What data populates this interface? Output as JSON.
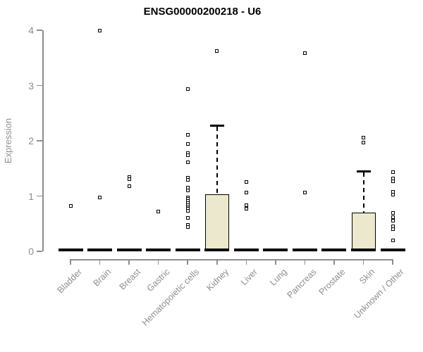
{
  "chart_data": {
    "type": "box",
    "title": "ENSG00000200218 - U6",
    "xlabel": "",
    "ylabel": "Expression",
    "ylim": [
      0,
      4
    ],
    "y_ticks": [
      "0",
      "1",
      "2",
      "3",
      "4"
    ],
    "grid": false,
    "legend": "none",
    "categories": [
      "Bladder",
      "Brain",
      "Breast",
      "Gastric",
      "Hematopoietic cells",
      "Kidney",
      "Liver",
      "Lung",
      "Pancreas",
      "Prostate",
      "Skin",
      "Unknown / Other"
    ],
    "boxes": [
      {
        "category": "Bladder",
        "median": 0,
        "q1": 0,
        "q3": 0,
        "whisker_low": 0,
        "whisker_high": 0,
        "outliers": [
          0.82
        ]
      },
      {
        "category": "Brain",
        "median": 0,
        "q1": 0,
        "q3": 0,
        "whisker_low": 0,
        "whisker_high": 0,
        "outliers": [
          4.0,
          0.97
        ]
      },
      {
        "category": "Breast",
        "median": 0,
        "q1": 0,
        "q3": 0,
        "whisker_low": 0,
        "whisker_high": 0,
        "outliers": [
          1.35,
          1.3,
          1.18
        ]
      },
      {
        "category": "Gastric",
        "median": 0,
        "q1": 0,
        "q3": 0,
        "whisker_low": 0,
        "whisker_high": 0,
        "outliers": [
          0.72
        ]
      },
      {
        "category": "Hematopoietic cells",
        "median": 0,
        "q1": 0,
        "q3": 0,
        "whisker_low": 0,
        "whisker_high": 0,
        "outliers": [
          2.93,
          2.11,
          1.94,
          1.78,
          1.74,
          1.61,
          1.33,
          1.29,
          1.15,
          1.1,
          0.98,
          0.95,
          0.91,
          0.87,
          0.84,
          0.8,
          0.77,
          0.73,
          0.6,
          0.48,
          0.44
        ]
      },
      {
        "category": "Kidney",
        "median": 0,
        "q1": 0,
        "q3": 1.03,
        "whisker_low": 0,
        "whisker_high": 2.28,
        "outliers": [
          3.63
        ]
      },
      {
        "category": "Liver",
        "median": 0,
        "q1": 0,
        "q3": 0,
        "whisker_low": 0,
        "whisker_high": 0,
        "outliers": [
          1.25,
          1.06,
          0.83,
          0.77
        ]
      },
      {
        "category": "Lung",
        "median": 0,
        "q1": 0,
        "q3": 0,
        "whisker_low": 0,
        "whisker_high": 0,
        "outliers": []
      },
      {
        "category": "Pancreas",
        "median": 0,
        "q1": 0,
        "q3": 0,
        "whisker_low": 0,
        "whisker_high": 0,
        "outliers": [
          3.58,
          1.07
        ]
      },
      {
        "category": "Prostate",
        "median": 0,
        "q1": 0,
        "q3": 0,
        "whisker_low": 0,
        "whisker_high": 0,
        "outliers": []
      },
      {
        "category": "Skin",
        "median": 0,
        "q1": 0,
        "q3": 0.7,
        "whisker_low": 0,
        "whisker_high": 1.45,
        "outliers": [
          2.06,
          1.97
        ]
      },
      {
        "category": "Unknown / Other",
        "median": 0,
        "q1": 0,
        "q3": 0,
        "whisker_low": 0,
        "whisker_high": 0,
        "outliers": [
          1.43,
          1.32,
          1.27,
          1.08,
          1.02,
          0.7,
          0.62,
          0.56,
          0.45,
          0.4,
          0.2
        ]
      }
    ],
    "colors": {
      "box_fill": "#ece8cd",
      "box_border": "#000000",
      "median": "#000000",
      "whisker": "#000000",
      "outlier_border": "#000000",
      "outlier_fill": "#ffffff",
      "axis": "#8e8e8e",
      "tick_label": "#8e8e8e",
      "title": "#000000"
    }
  }
}
